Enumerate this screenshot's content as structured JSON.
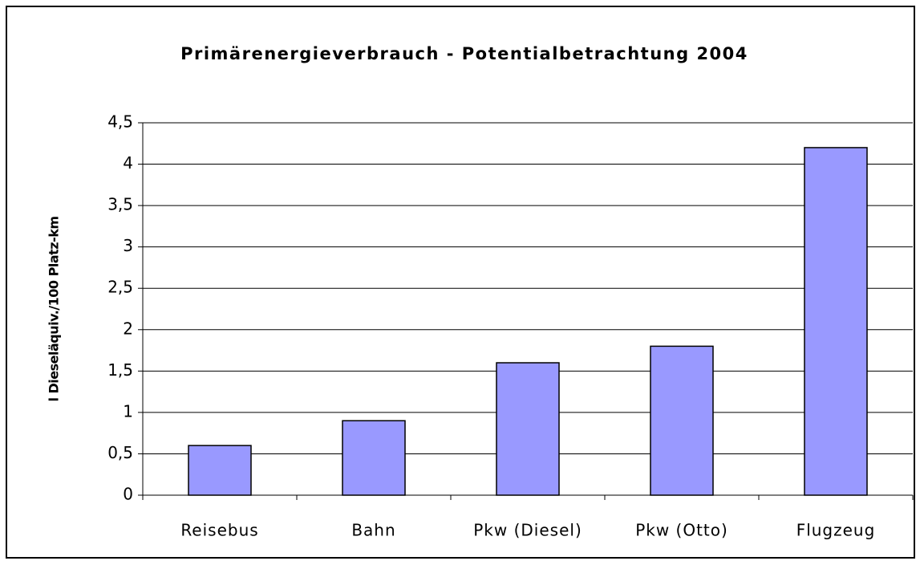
{
  "chart_data": {
    "type": "bar",
    "title": "Primärenergieverbrauch - Potentialbetrachtung 2004",
    "y_label": "l Dieseläquiv./100 Platz-km",
    "categories": [
      "Reisebus",
      "Bahn",
      "Pkw (Diesel)",
      "Pkw (Otto)",
      "Flugzeug"
    ],
    "values": [
      0.6,
      0.9,
      1.6,
      1.8,
      4.2
    ],
    "color": "#9999ff",
    "ylim": [
      0,
      4.5
    ],
    "yticks": [
      0,
      {
        "value": 0.5,
        "label": "0,5"
      },
      1,
      {
        "value": 1.5,
        "label": "1,5"
      },
      2,
      {
        "value": 2.5,
        "label": "2,5"
      },
      3,
      {
        "value": 3.5,
        "label": "3,5"
      },
      4,
      {
        "value": 4.5,
        "label": "4,5"
      }
    ],
    "grid": true
  }
}
